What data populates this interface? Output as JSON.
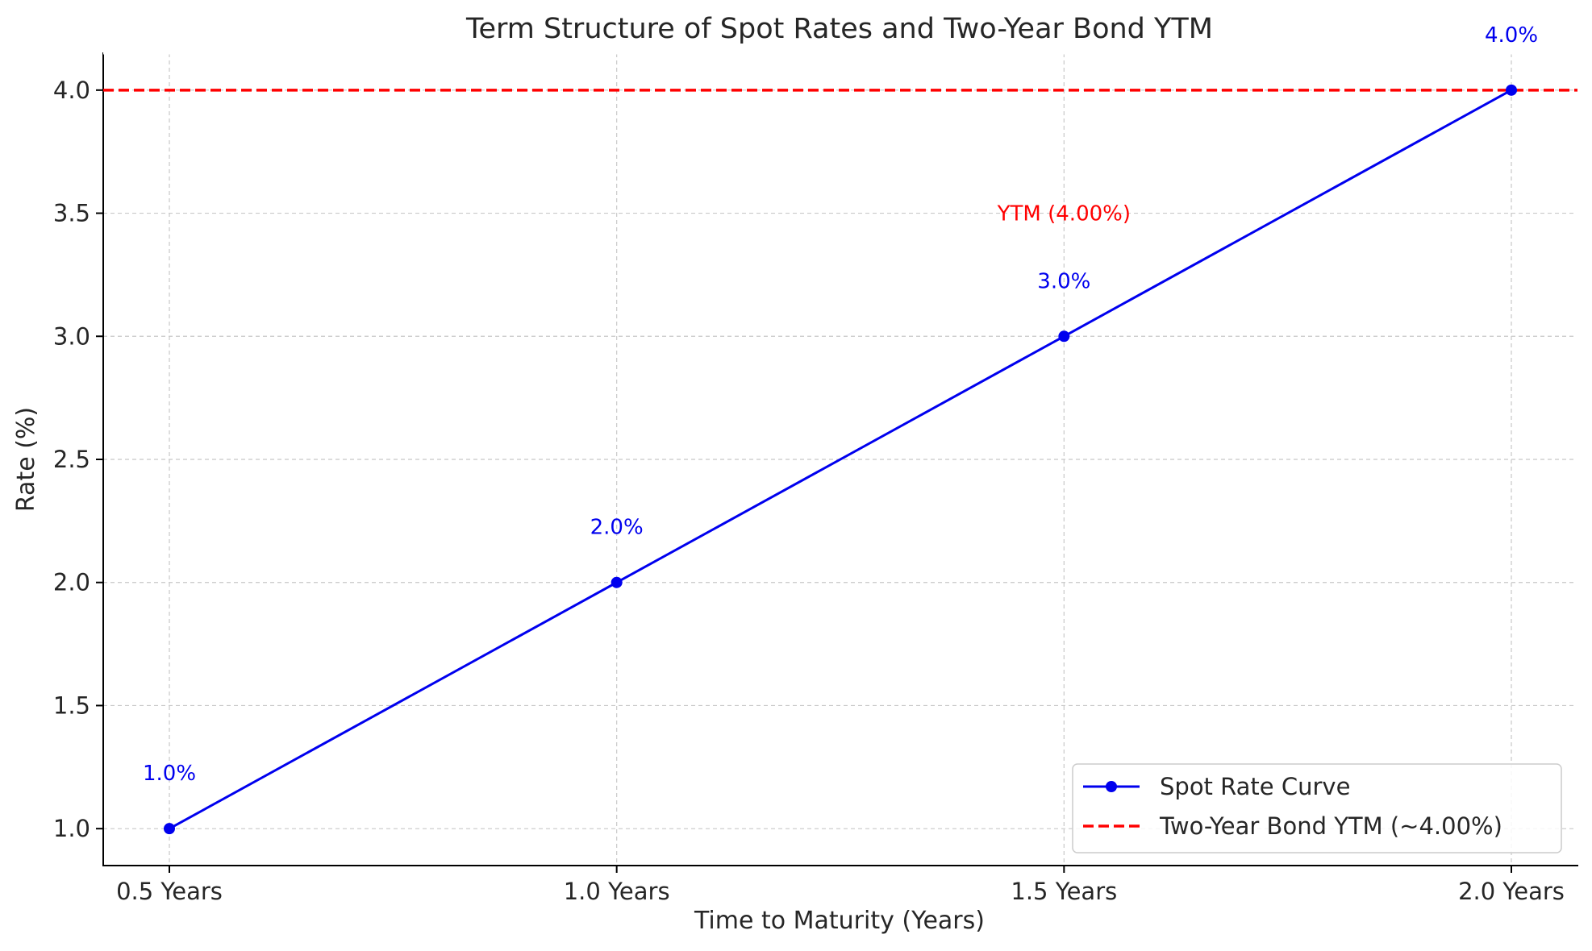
{
  "chart_data": {
    "type": "line",
    "title": "Term Structure of Spot Rates and Two-Year Bond YTM",
    "xlabel": "Time to Maturity (Years)",
    "ylabel": "Rate (%)",
    "categories": [
      "0.5 Years",
      "1.0 Years",
      "1.5 Years",
      "2.0 Years"
    ],
    "ylim": [
      0.85,
      4.15
    ],
    "yticks": [
      "1.0",
      "1.5",
      "2.0",
      "2.5",
      "3.0",
      "3.5",
      "4.0"
    ],
    "grid": true,
    "legend_position": "lower-right",
    "series": [
      {
        "name": "Spot Rate Curve",
        "values": [
          1.0,
          2.0,
          3.0,
          4.0
        ],
        "data_labels": [
          "1.0%",
          "2.0%",
          "3.0%",
          "4.0%"
        ],
        "color": "#0000ee",
        "style": "solid-with-markers"
      },
      {
        "name": "Two-Year Bond YTM (~4.00%)",
        "value": 4.0,
        "color": "#ff0000",
        "style": "dashed-horizontal"
      }
    ],
    "annotations": [
      {
        "text": "YTM (4.00%)",
        "x_index": 2,
        "y": 3.5,
        "color": "#ff0000"
      }
    ]
  }
}
